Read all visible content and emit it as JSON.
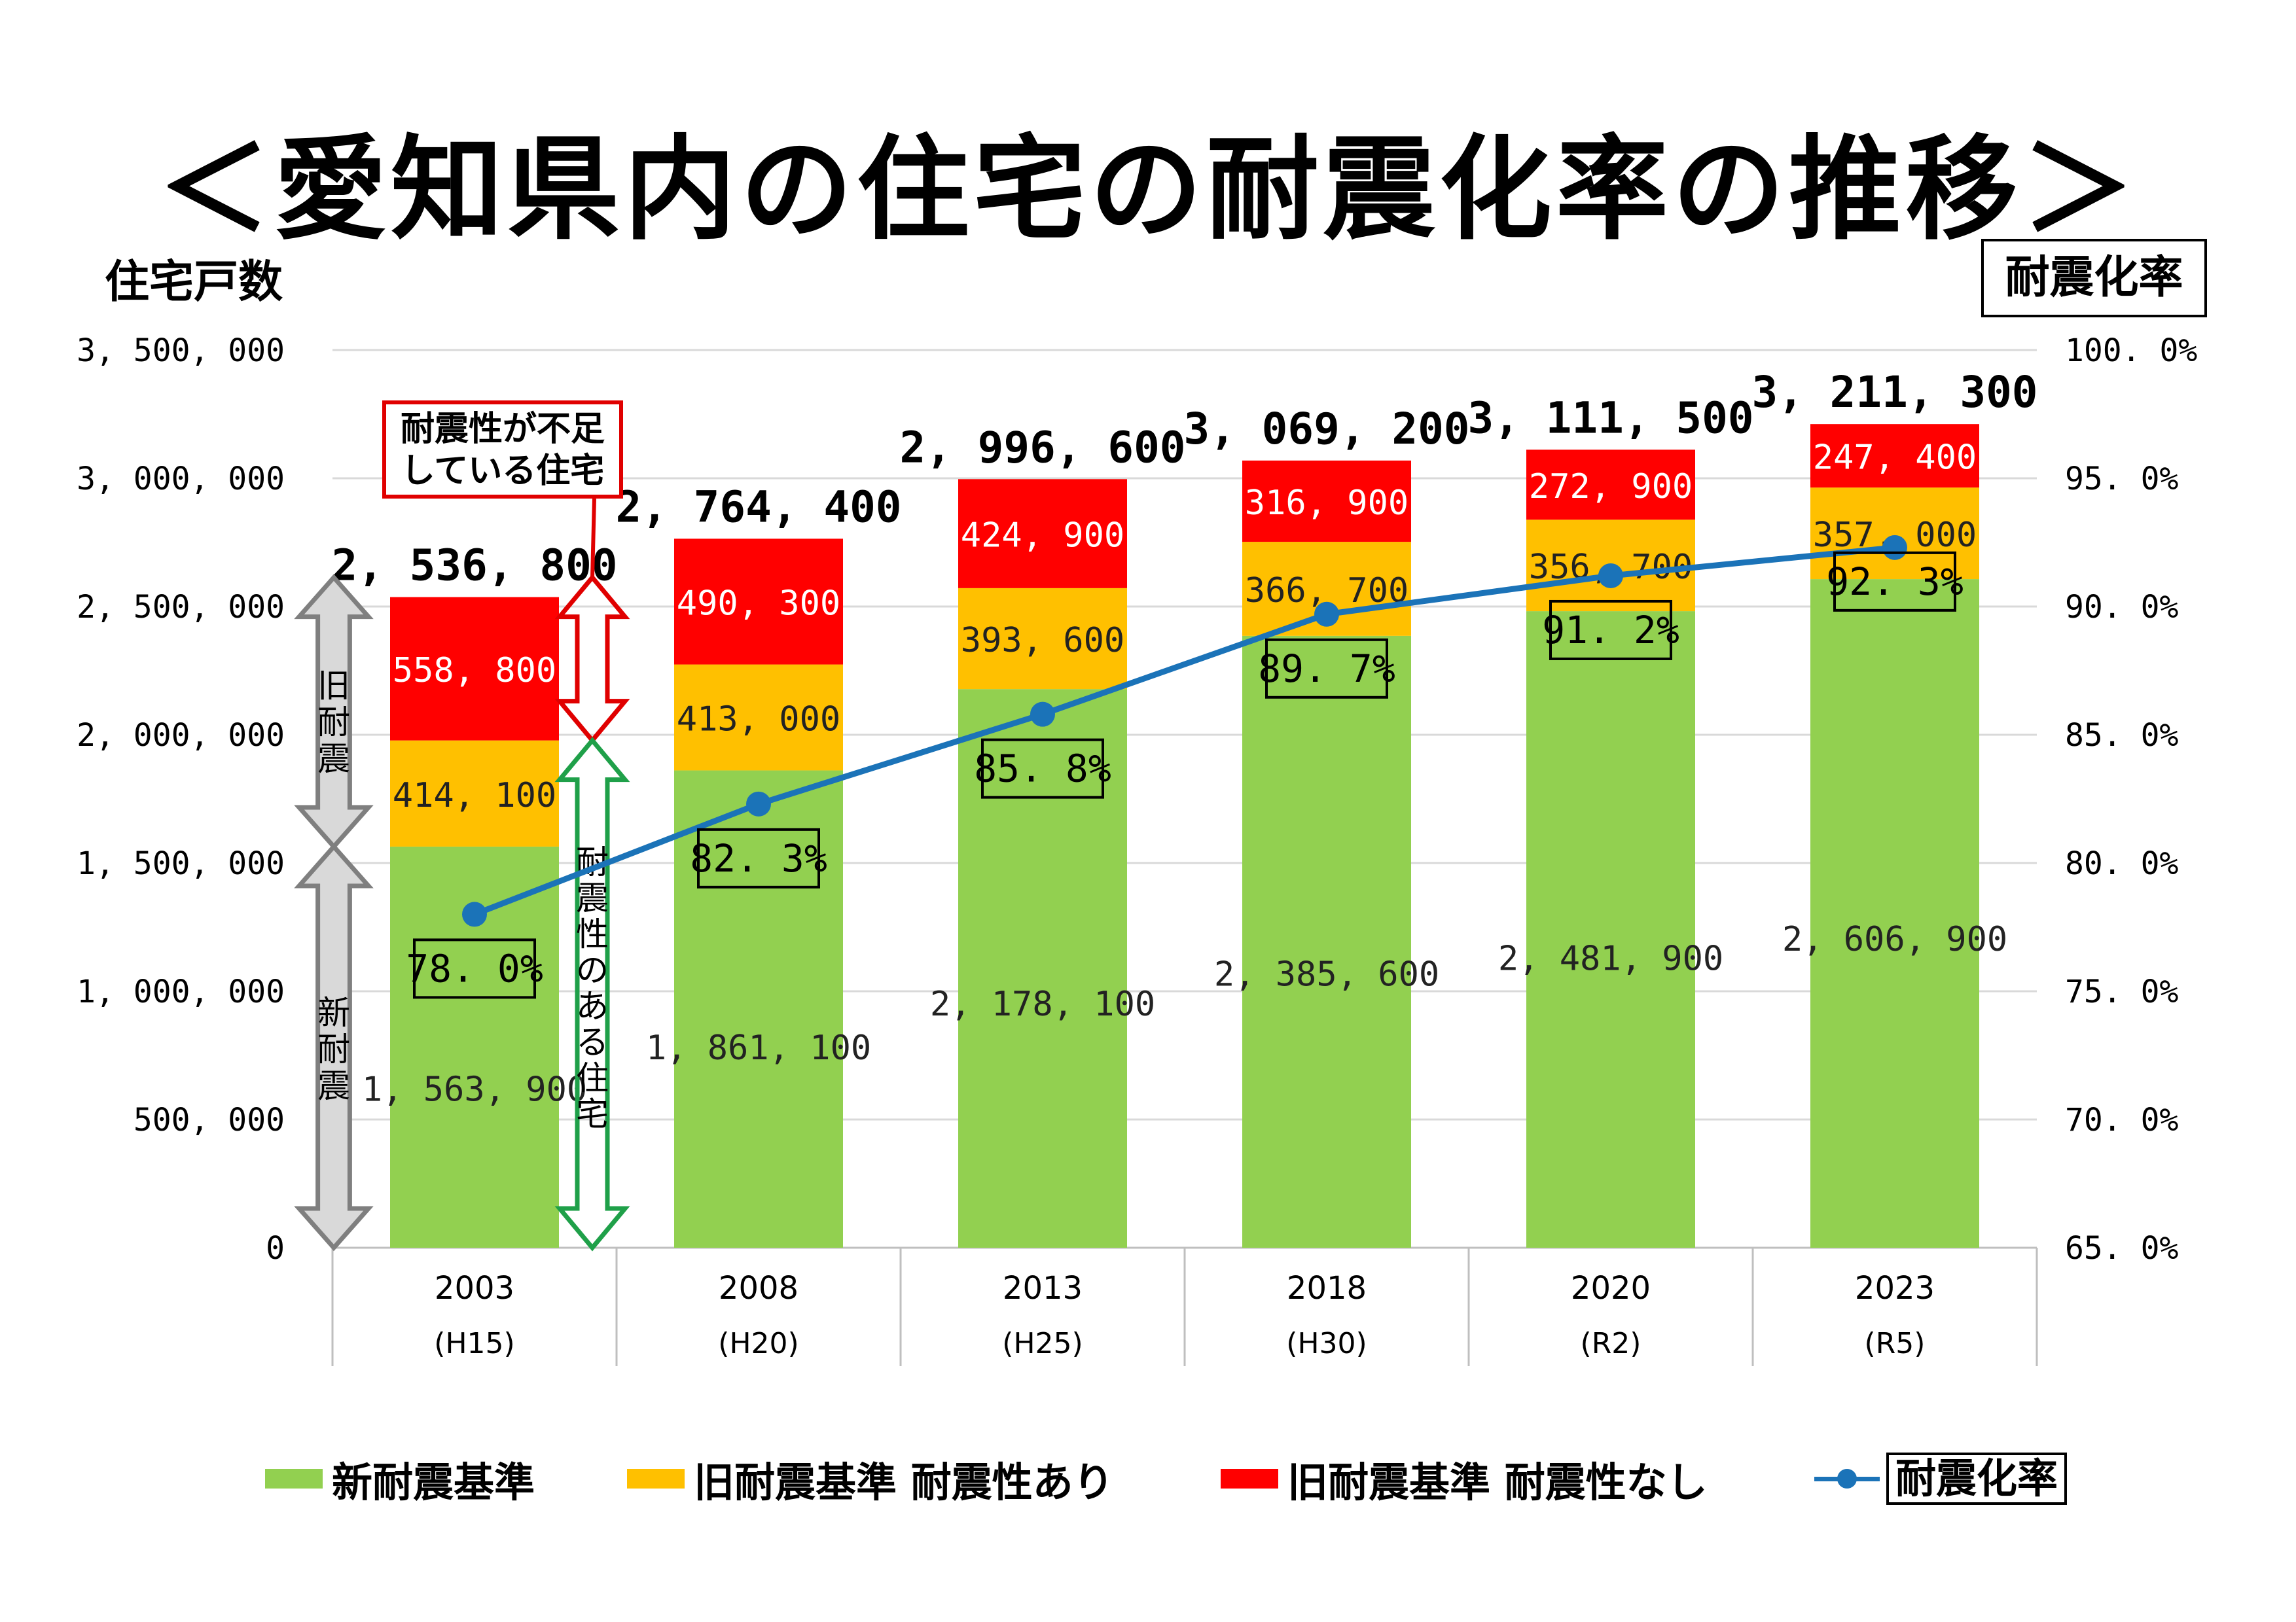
{
  "page": {
    "title": "＜愛知県内の住宅の耐震化率の推移＞",
    "y_left_title": "住宅戸数",
    "y_right_title": "耐震化率"
  },
  "annotations": {
    "callout_line1": "耐震性が不足",
    "callout_line2": "している住宅",
    "old_standard": "旧耐震",
    "new_standard": "新耐震",
    "seismic_ok": "耐震性のある住宅"
  },
  "colors": {
    "new": "#92d050",
    "old_ok": "#ffc000",
    "old_ng": "#ff0000",
    "rate_line": "#1b73b8",
    "grid": "#d9d9d9",
    "axis_text": "#000000",
    "arrow_gray": "#d9d9d9",
    "arrow_gray_stroke": "#7f7f7f",
    "arrow_red": "#e00000",
    "arrow_green": "#1fa049"
  },
  "legend": [
    {
      "label": "新耐震基準",
      "color": "#92d050",
      "kind": "box"
    },
    {
      "label": "旧耐震基準 耐震性あり",
      "color": "#ffc000",
      "kind": "box"
    },
    {
      "label": "旧耐震基準 耐震性なし",
      "color": "#ff0000",
      "kind": "box"
    },
    {
      "label": "耐震化率",
      "color": "#1b73b8",
      "kind": "line"
    }
  ],
  "chart_data": {
    "type": "bar",
    "stacked": true,
    "categories": [
      "2003",
      "2008",
      "2013",
      "2018",
      "2020",
      "2023"
    ],
    "category_sublabels": [
      "(H15)",
      "(H20)",
      "(H25)",
      "(H30)",
      "(R2)",
      "(R5)"
    ],
    "series": [
      {
        "name": "新耐震基準",
        "values": [
          1563900,
          1861100,
          2178100,
          2385600,
          2481900,
          2606900
        ],
        "labels": [
          "1, 563, 900",
          "1, 861, 100",
          "2, 178, 100",
          "2, 385, 600",
          "2, 481, 900",
          "2, 606, 900"
        ]
      },
      {
        "name": "旧耐震基準 耐震性あり",
        "values": [
          414100,
          413000,
          393600,
          366700,
          356700,
          357000
        ],
        "labels": [
          "414, 100",
          "413, 000",
          "393, 600",
          "366, 700",
          "356, 700",
          "357, 000"
        ]
      },
      {
        "name": "旧耐震基準 耐震性なし",
        "values": [
          558800,
          490300,
          424900,
          316900,
          272900,
          247400
        ],
        "labels": [
          "558, 800",
          "490, 300",
          "424, 900",
          "316, 900",
          "272, 900",
          "247, 400"
        ]
      }
    ],
    "totals": [
      2536800,
      2764400,
      2996600,
      3069200,
      3111500,
      3211300
    ],
    "total_labels": [
      "2, 536, 800",
      "2, 764, 400",
      "2, 996, 600",
      "3, 069, 200",
      "3, 111, 500",
      "3, 211, 300"
    ],
    "line_series": {
      "name": "耐震化率",
      "axis": "right",
      "values": [
        78.0,
        82.3,
        85.8,
        89.7,
        91.2,
        92.3
      ],
      "labels": [
        "78. 0%",
        "82. 3%",
        "85. 8%",
        "89. 7%",
        "91. 2%",
        "92. 3%"
      ]
    },
    "y_left": {
      "min": 0,
      "max": 3500000,
      "step": 500000,
      "tick_labels": [
        "0",
        "500, 000",
        "1, 000, 000",
        "1, 500, 000",
        "2, 000, 000",
        "2, 500, 000",
        "3, 000, 000",
        "3, 500, 000"
      ]
    },
    "y_right": {
      "min": 65,
      "max": 100,
      "step": 5,
      "tick_labels": [
        "65. 0%",
        "70. 0%",
        "75. 0%",
        "80. 0%",
        "85. 0%",
        "90. 0%",
        "95. 0%",
        "100. 0%"
      ]
    },
    "xlabel": "",
    "ylabel": "住宅戸数",
    "ylabel_right": "耐震化率",
    "grid": true,
    "legend_position": "bottom"
  }
}
